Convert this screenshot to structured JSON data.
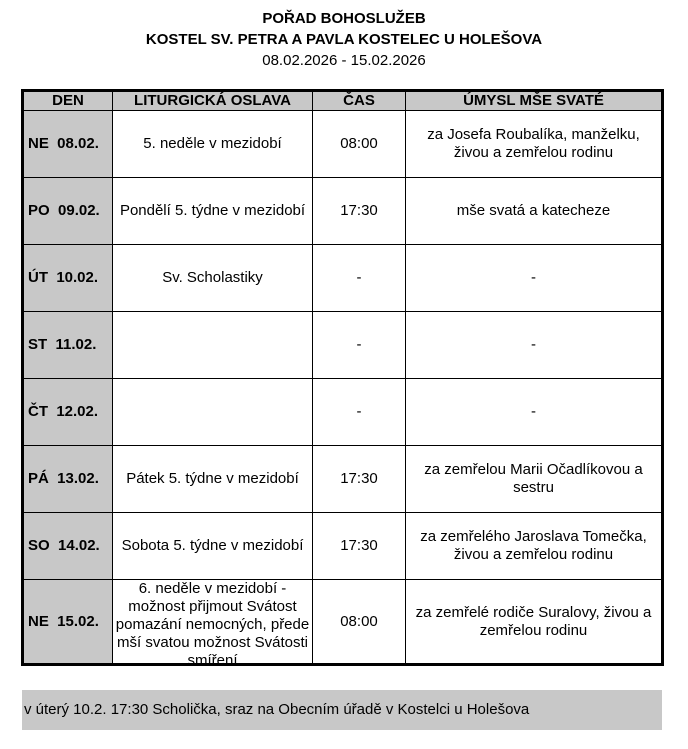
{
  "header": {
    "title": "POŘAD BOHOSLUŽEB",
    "subtitle": "KOSTEL SV. PETRA A PAVLA KOSTELEC U HOLEŠOVA",
    "date_range": "08.02.2026 - 15.02.2026"
  },
  "table": {
    "columns": [
      "DEN",
      "LITURGICKÁ OSLAVA",
      "ČAS",
      "ÚMYSL MŠE SVATÉ"
    ],
    "rows": [
      {
        "day": "NE  08.02.",
        "celebration": "5. neděle v mezidobí",
        "time": "08:00",
        "intention": "za Josefa Roubalíka, manželku, živou a zemřelou rodinu"
      },
      {
        "day": "PO  09.02.",
        "celebration": "Pondělí 5. týdne v mezidobí",
        "time": "17:30",
        "intention": "mše svatá a katecheze"
      },
      {
        "day": "ÚT  10.02.",
        "celebration": "Sv. Scholastiky",
        "time": "-",
        "intention": "-"
      },
      {
        "day": "ST  11.02.",
        "celebration": "",
        "time": "-",
        "intention": "-"
      },
      {
        "day": "ČT  12.02.",
        "celebration": "",
        "time": "-",
        "intention": "-"
      },
      {
        "day": "PÁ  13.02.",
        "celebration": "Pátek 5. týdne v mezidobí",
        "time": "17:30",
        "intention": "za zemřelou Marii Očadlíkovou a sestru"
      },
      {
        "day": "SO  14.02.",
        "celebration": "Sobota 5. týdne v mezidobí",
        "time": "17:30",
        "intention": "za zemřelého Jaroslava Tomečka, živou a zemřelou rodinu"
      },
      {
        "day": "NE  15.02.",
        "celebration": "6. neděle v mezidobí - možnost přijmout Svátost pomazání nemocných, přede mší svatou možnost Svátosti smíření",
        "time": "08:00",
        "intention": "za zemřelé rodiče Suralovy, živou a zemřelou rodinu"
      }
    ]
  },
  "note": "v úterý 10.2. 17:30 Scholička, sraz na Obecním úřadě v Kostelci u Holešova"
}
